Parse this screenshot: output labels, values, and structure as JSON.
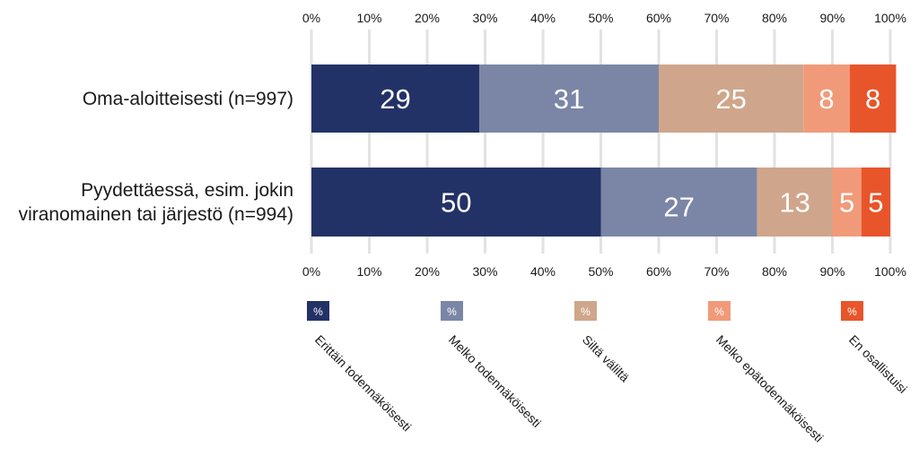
{
  "chart_data": {
    "type": "bar",
    "orientation": "horizontal",
    "stacked": true,
    "categories": [
      [
        "Oma-aloitteisesti (n=997)"
      ],
      [
        "Pyydettäessä, esim. jokin",
        "viranomainen tai järjestö (n=994)"
      ]
    ],
    "series": [
      {
        "name": "Erittäin todennäköisesti",
        "color": "#233266",
        "values": [
          29,
          50
        ],
        "labels": [
          "29",
          "50"
        ]
      },
      {
        "name": "Melko todennäköisesti",
        "color": "#7b86a6",
        "values": [
          31,
          27
        ],
        "labels": [
          "31",
          "27"
        ]
      },
      {
        "name": "Siltä väliltä",
        "color": "#cfa68b",
        "values": [
          25,
          13
        ],
        "labels": [
          "25",
          "13"
        ]
      },
      {
        "name": "Melko epätodennäköisesti",
        "color": "#f19a7a",
        "values": [
          8,
          5
        ],
        "labels": [
          "8",
          "5"
        ]
      },
      {
        "name": "En osallistuisi",
        "color": "#e8552a",
        "values": [
          8,
          5
        ],
        "labels": [
          "8",
          "5"
        ]
      }
    ],
    "xlim": [
      0,
      100
    ],
    "ticks": [
      "0%",
      "10%",
      "20%",
      "30%",
      "40%",
      "50%",
      "60%",
      "70%",
      "80%",
      "90%",
      "100%"
    ],
    "grid": true,
    "legend": {
      "placement": "bottom",
      "swatch_label": "%"
    }
  }
}
